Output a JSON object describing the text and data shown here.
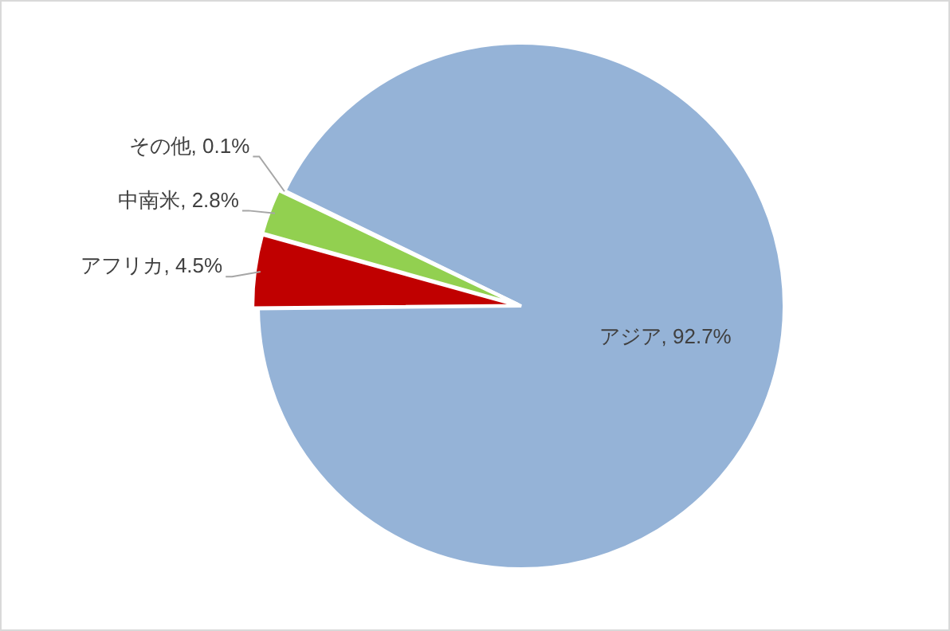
{
  "chart_data": {
    "type": "pie",
    "categories": [
      "アジア",
      "アフリカ",
      "中南米",
      "その他"
    ],
    "values": [
      92.7,
      4.5,
      2.8,
      0.1
    ],
    "colors": [
      "#95b3d7",
      "#c00000",
      "#92d050",
      "#95b3d7"
    ],
    "value_labels": [
      ", 92.7%",
      ", 4.5%",
      ", 2.8%",
      ", 0.1%"
    ],
    "legend": false
  }
}
